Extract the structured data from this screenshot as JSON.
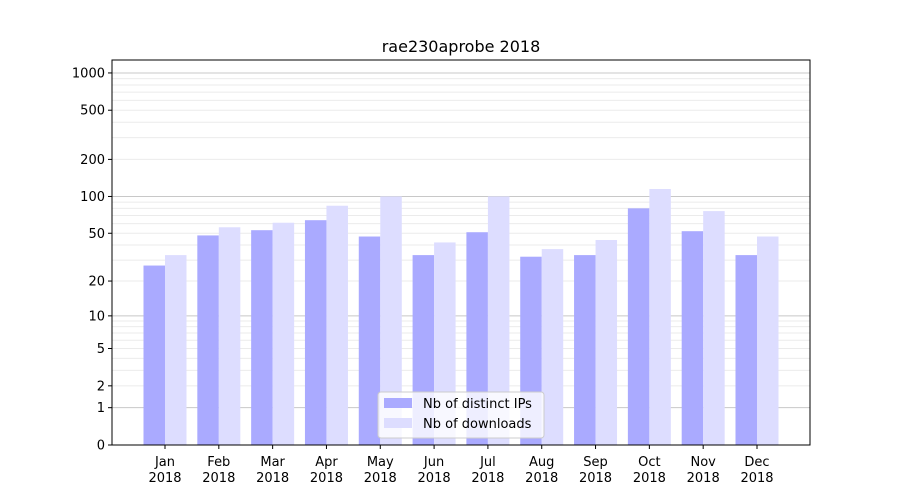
{
  "chart_data": {
    "type": "bar",
    "title": "rae230aprobe 2018",
    "xlabel": "",
    "ylabel": "",
    "yscale": "log(1+y)",
    "ylim": [
      0,
      1200
    ],
    "yticks": [
      0,
      1,
      2,
      5,
      10,
      20,
      50,
      100,
      200,
      500,
      1000
    ],
    "grid": true,
    "legend_position": "lower center",
    "categories": [
      "Jan\n2018",
      "Feb\n2018",
      "Mar\n2018",
      "Apr\n2018",
      "May\n2018",
      "Jun\n2018",
      "Jul\n2018",
      "Aug\n2018",
      "Sep\n2018",
      "Oct\n2018",
      "Nov\n2018",
      "Dec\n2018"
    ],
    "series": [
      {
        "name": "Nb of distinct IPs",
        "color": "#aaaaff",
        "values": [
          27,
          48,
          53,
          64,
          47,
          33,
          51,
          32,
          33,
          80,
          52,
          33
        ]
      },
      {
        "name": "Nb of downloads",
        "color": "#ddddff",
        "values": [
          33,
          56,
          61,
          84,
          100,
          42,
          100,
          37,
          44,
          115,
          76,
          47
        ]
      }
    ]
  }
}
